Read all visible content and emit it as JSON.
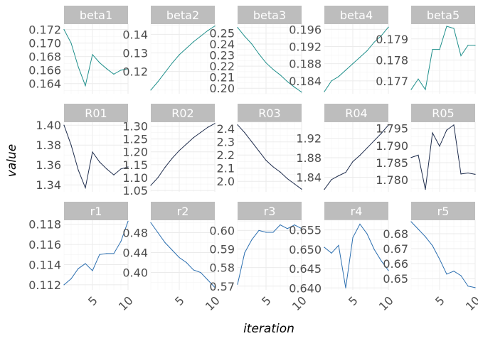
{
  "chart_data": {
    "type": "line",
    "layout": "facet-grid 3x5, free y scales",
    "xlabel": "iteration",
    "ylabel": "value",
    "xlim": [
      1,
      10
    ],
    "x_ticks": [
      5,
      10
    ],
    "x_tick_labels": [
      "5",
      "10"
    ],
    "grid": true,
    "strip_color": "#bdbdbd",
    "row_colors": [
      "#21908c",
      "#1f2d4d",
      "#2c6fb0"
    ],
    "x": [
      1,
      2,
      3,
      4,
      5,
      6,
      7,
      8,
      9,
      10
    ],
    "panels": [
      {
        "name": "beta1",
        "ylim": [
          0.1625,
          0.1728
        ],
        "y_ticks": [
          0.164,
          0.166,
          0.168,
          0.17,
          0.172
        ],
        "y_tick_labels": [
          "0.164",
          "0.166",
          "0.168",
          "0.170",
          "0.172"
        ],
        "values": [
          0.172,
          0.17,
          0.1665,
          0.1637,
          0.1683,
          0.1671,
          0.1662,
          0.1654,
          0.166,
          0.1662
        ]
      },
      {
        "name": "beta2",
        "ylim": [
          0.108,
          0.1455
        ],
        "y_ticks": [
          0.12,
          0.13,
          0.14
        ],
        "y_tick_labels": [
          "0.12",
          "0.13",
          "0.14"
        ],
        "values": [
          0.11,
          0.1145,
          0.1195,
          0.1245,
          0.129,
          0.1325,
          0.136,
          0.139,
          0.142,
          0.1445
        ]
      },
      {
        "name": "beta3",
        "ylim": [
          0.195,
          0.258
        ],
        "y_ticks": [
          0.2,
          0.21,
          0.22,
          0.23,
          0.24,
          0.25
        ],
        "y_tick_labels": [
          "0.20",
          "0.21",
          "0.22",
          "0.23",
          "0.24",
          "0.25"
        ],
        "values": [
          0.255,
          0.247,
          0.24,
          0.231,
          0.223,
          0.217,
          0.212,
          0.206,
          0.201,
          0.1965
        ]
      },
      {
        "name": "beta4",
        "ylim": [
          0.181,
          0.1972
        ],
        "y_ticks": [
          0.184,
          0.188,
          0.192,
          0.196
        ],
        "y_tick_labels": [
          "0.184",
          "0.188",
          "0.192",
          "0.196"
        ],
        "values": [
          0.1815,
          0.184,
          0.185,
          0.1865,
          0.188,
          0.1895,
          0.191,
          0.193,
          0.1945,
          0.1965
        ]
      },
      {
        "name": "beta5",
        "ylim": [
          0.1764,
          0.1797
        ],
        "y_ticks": [
          0.177,
          0.178,
          0.179
        ],
        "y_tick_labels": [
          "0.177",
          "0.178",
          "0.179"
        ],
        "values": [
          0.1766,
          0.1771,
          0.1766,
          0.1785,
          0.1785,
          0.1796,
          0.1795,
          0.1782,
          0.1787,
          0.1787
        ]
      },
      {
        "name": "R01",
        "ylim": [
          1.333,
          1.403
        ],
        "y_ticks": [
          1.34,
          1.36,
          1.38,
          1.4
        ],
        "y_tick_labels": [
          "1.34",
          "1.36",
          "1.38",
          "1.40"
        ],
        "values": [
          1.4,
          1.38,
          1.355,
          1.337,
          1.373,
          1.363,
          1.356,
          1.35,
          1.356,
          1.358
        ]
      },
      {
        "name": "R02",
        "ylim": [
          1.045,
          1.315
        ],
        "y_ticks": [
          1.05,
          1.1,
          1.15,
          1.2,
          1.25,
          1.3
        ],
        "y_tick_labels": [
          "1.05",
          "1.10",
          "1.15",
          "1.20",
          "1.25",
          "1.30"
        ],
        "values": [
          1.07,
          1.1,
          1.14,
          1.175,
          1.205,
          1.23,
          1.255,
          1.275,
          1.295,
          1.31
        ]
      },
      {
        "name": "R03",
        "ylim": [
          1.92,
          2.45
        ],
        "y_ticks": [
          2.0,
          2.1,
          2.2,
          2.3,
          2.4
        ],
        "y_tick_labels": [
          "2.0",
          "2.1",
          "2.2",
          "2.3",
          "2.4"
        ],
        "values": [
          2.43,
          2.37,
          2.3,
          2.23,
          2.16,
          2.11,
          2.07,
          2.02,
          1.98,
          1.94
        ]
      },
      {
        "name": "R04",
        "ylim": [
          1.81,
          1.953
        ],
        "y_ticks": [
          1.84,
          1.88,
          1.92
        ],
        "y_tick_labels": [
          "1.84",
          "1.88",
          "1.92"
        ],
        "values": [
          1.815,
          1.835,
          1.843,
          1.85,
          1.872,
          1.885,
          1.9,
          1.915,
          1.93,
          1.947
        ]
      },
      {
        "name": "R05",
        "ylim": [
          1.7765,
          1.7968
        ],
        "y_ticks": [
          1.78,
          1.785,
          1.79,
          1.795
        ],
        "y_tick_labels": [
          "1.780",
          "1.785",
          "1.790",
          "1.795"
        ],
        "values": [
          1.7865,
          1.7872,
          1.7772,
          1.7937,
          1.7898,
          1.7945,
          1.796,
          1.7817,
          1.782,
          1.7816
        ]
      },
      {
        "name": "r1",
        "ylim": [
          0.1115,
          0.1184
        ],
        "y_ticks": [
          0.112,
          0.114,
          0.116,
          0.118
        ],
        "y_tick_labels": [
          "0.112",
          "0.114",
          "0.116",
          "0.118"
        ],
        "values": [
          0.112,
          0.1126,
          0.1136,
          0.1141,
          0.1134,
          0.115,
          0.1151,
          0.1151,
          0.1163,
          0.1183
        ]
      },
      {
        "name": "r2",
        "ylim": [
          0.365,
          0.505
        ],
        "y_ticks": [
          0.4,
          0.44,
          0.48
        ],
        "y_tick_labels": [
          "0.40",
          "0.44",
          "0.48"
        ],
        "values": [
          0.5,
          0.48,
          0.46,
          0.445,
          0.43,
          0.42,
          0.405,
          0.4,
          0.385,
          0.37
        ]
      },
      {
        "name": "r3",
        "ylim": [
          0.568,
          0.6055
        ],
        "y_ticks": [
          0.57,
          0.58,
          0.59,
          0.6
        ],
        "y_tick_labels": [
          "0.57",
          "0.58",
          "0.59",
          "0.60"
        ],
        "values": [
          0.571,
          0.588,
          0.595,
          0.6,
          0.599,
          0.599,
          0.603,
          0.601,
          0.603,
          0.601
        ]
      },
      {
        "name": "r4",
        "ylim": [
          0.6395,
          0.6575
        ],
        "y_ticks": [
          0.64,
          0.645,
          0.65,
          0.655
        ],
        "y_tick_labels": [
          "0.640",
          "0.645",
          "0.650",
          "0.655"
        ],
        "values": [
          0.6505,
          0.649,
          0.651,
          0.64,
          0.653,
          0.6565,
          0.654,
          0.65,
          0.647,
          0.6445
        ]
      },
      {
        "name": "r5",
        "ylim": [
          0.6425,
          0.689
        ],
        "y_ticks": [
          0.65,
          0.66,
          0.67,
          0.68
        ],
        "y_tick_labels": [
          "0.65",
          "0.66",
          "0.67",
          "0.68"
        ],
        "values": [
          0.688,
          0.683,
          0.678,
          0.672,
          0.663,
          0.653,
          0.655,
          0.652,
          0.645,
          0.644
        ]
      }
    ]
  }
}
